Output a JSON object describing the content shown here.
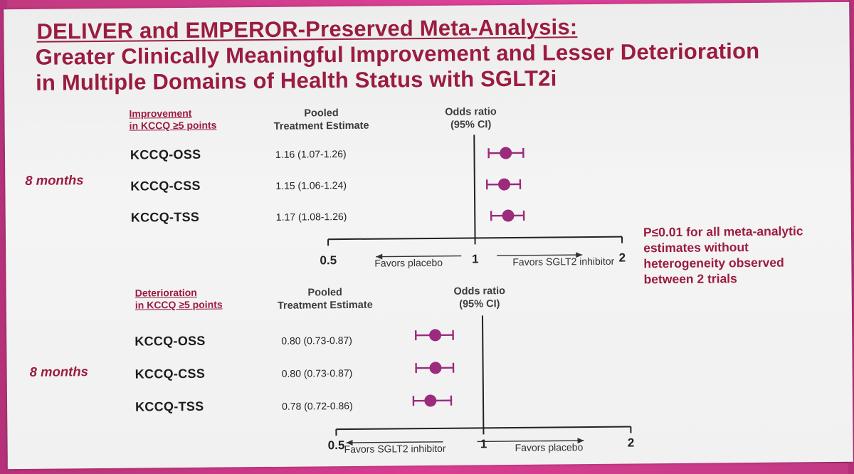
{
  "title": {
    "line1": "DELIVER and EMPEROR-Preserved Meta-Analysis:",
    "line2": "Greater Clinically Meaningful Improvement and Lesser Deterioration",
    "line3": "in Multiple Domains of Health Status with SGLT2i"
  },
  "colors": {
    "accent": "#9b1c40",
    "marker": "#9b2b7d",
    "frame": "#c23a7e"
  },
  "note": "P≤0.01 for all meta-analytic estimates without heterogeneity observed between 2 trials",
  "chart_data": [
    {
      "type": "forest",
      "name": "improvement",
      "col_header_line1": "Improvement",
      "col_header_line2": "in KCCQ ≥5 points",
      "est_header_line1": "Pooled",
      "est_header_line2": "Treatment Estimate",
      "or_header_line1": "Odds ratio",
      "or_header_line2": "(95% CI)",
      "timepoint": "8 months",
      "rows": [
        {
          "label": "KCCQ-OSS",
          "estimate_text": "1.16 (1.07-1.26)",
          "or": 1.16,
          "lo": 1.07,
          "hi": 1.26
        },
        {
          "label": "KCCQ-CSS",
          "estimate_text": "1.15 (1.06-1.24)",
          "or": 1.15,
          "lo": 1.06,
          "hi": 1.24
        },
        {
          "label": "KCCQ-TSS",
          "estimate_text": "1.17 (1.08-1.26)",
          "or": 1.17,
          "lo": 1.08,
          "hi": 1.26
        }
      ],
      "axis": {
        "scale": "log",
        "min": 0.5,
        "max": 2,
        "ref": 1,
        "ticks": [
          "0.5",
          "1",
          "2"
        ]
      },
      "favors_left": "Favors placebo",
      "favors_right": "Favors SGLT2 inhibitor"
    },
    {
      "type": "forest",
      "name": "deterioration",
      "col_header_line1": "Deterioration",
      "col_header_line2": "in KCCQ ≥5 points",
      "est_header_line1": "Pooled",
      "est_header_line2": "Treatment Estimate",
      "or_header_line1": "Odds ratio",
      "or_header_line2": "(95% CI)",
      "timepoint": "8 months",
      "rows": [
        {
          "label": "KCCQ-OSS",
          "estimate_text": "0.80 (0.73-0.87)",
          "or": 0.8,
          "lo": 0.73,
          "hi": 0.87
        },
        {
          "label": "KCCQ-CSS",
          "estimate_text": "0.80 (0.73-0.87)",
          "or": 0.8,
          "lo": 0.73,
          "hi": 0.87
        },
        {
          "label": "KCCQ-TSS",
          "estimate_text": "0.78 (0.72-0.86)",
          "or": 0.78,
          "lo": 0.72,
          "hi": 0.86
        }
      ],
      "axis": {
        "scale": "log",
        "min": 0.5,
        "max": 2,
        "ref": 1,
        "ticks": [
          "0.5",
          "1",
          "2"
        ]
      },
      "favors_left": "Favors SGLT2 inhibitor",
      "favors_right": "Favors placebo"
    }
  ]
}
